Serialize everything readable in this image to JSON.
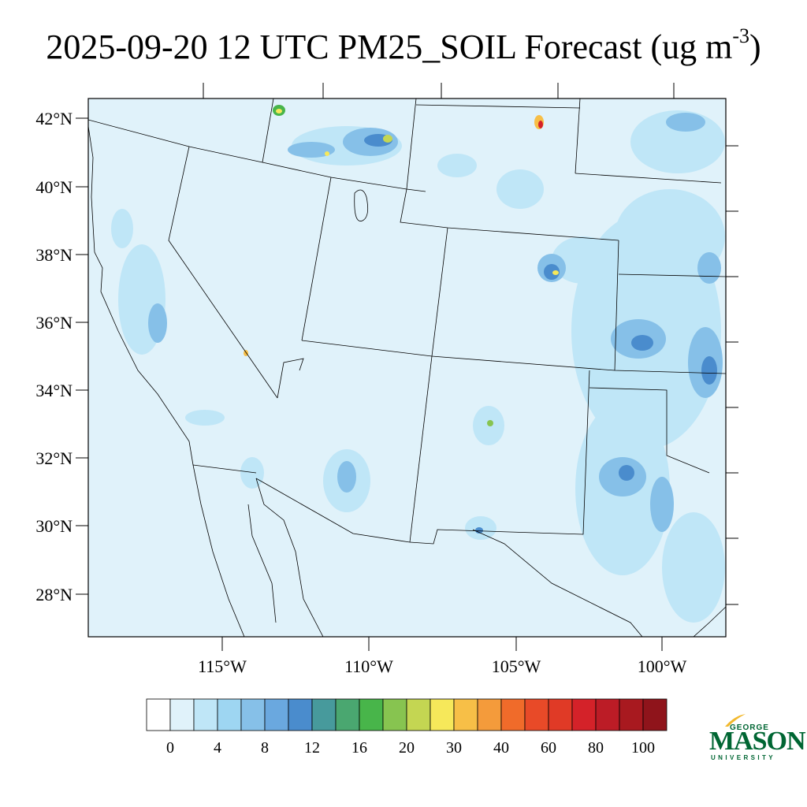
{
  "title": {
    "prefix": "2025-09-20 12 UTC PM25_SOIL Forecast (ug m",
    "sup": "-3",
    "suffix": ")"
  },
  "map": {
    "region": "Western United States and northern Mexico",
    "lat_labels": [
      "42°N",
      "40°N",
      "38°N",
      "36°N",
      "34°N",
      "32°N",
      "30°N",
      "28°N"
    ],
    "lon_labels": [
      "115°W",
      "110°W",
      "105°W",
      "100°W"
    ],
    "background_color": "#e0f2fa"
  },
  "colorbar": {
    "labels": [
      "0",
      "4",
      "8",
      "12",
      "16",
      "20",
      "30",
      "40",
      "60",
      "80",
      "100"
    ],
    "colors": [
      "#ffffff",
      "#e0f2fa",
      "#bfe6f7",
      "#9ed6f2",
      "#86c0e8",
      "#6aa8df",
      "#4a8ccd",
      "#479a9c",
      "#4aa770",
      "#48b54a",
      "#87c450",
      "#c4d652",
      "#f6e85a",
      "#f7bf47",
      "#f49b3b",
      "#f06b2a",
      "#e84a28",
      "#e03a26",
      "#d42229",
      "#bc1c26",
      "#a8191f",
      "#8f141b"
    ]
  },
  "logo": {
    "line1": "GEORGE",
    "line2": "MASON",
    "line3": "UNIVERSITY",
    "color": "#006633",
    "accent": "#f2b82c"
  }
}
